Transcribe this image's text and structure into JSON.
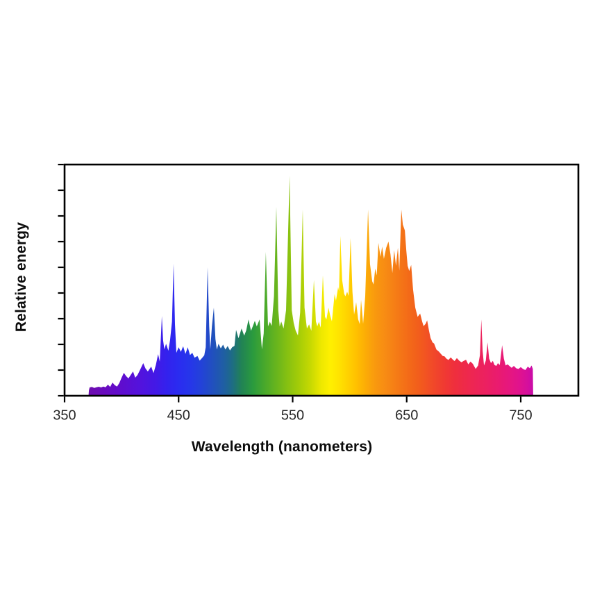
{
  "page": {
    "background_color": "#ffffff"
  },
  "chart_data": {
    "type": "area",
    "title": "",
    "xlabel": "Wavelength (nanometers)",
    "ylabel": "Relative energy",
    "grid": false,
    "legend_position": "none",
    "x_axis": {
      "min": 350,
      "max": 800,
      "ticks": [
        "350",
        "450",
        "550",
        "650",
        "750"
      ],
      "tick_values": [
        350,
        450,
        550,
        650,
        750
      ],
      "unit": "nm"
    },
    "y_axis": {
      "min": 0,
      "max": 1,
      "ticks_count": 10,
      "tick_labels_shown": false
    },
    "axis_color": "#000000",
    "tick_label_color": "#262626",
    "series_description": "Lamp spectral power distribution (many sharp emission spikes over a continuum), filled with a visible-spectrum color gradient from violet (~371 nm) to magenta (~761 nm). Energy values normalized 0-1 to plot height.",
    "points": [
      [
        371,
        0
      ],
      [
        371.4,
        0.024
      ],
      [
        372,
        0.036
      ],
      [
        374,
        0.038
      ],
      [
        376,
        0.034
      ],
      [
        378,
        0.037
      ],
      [
        380,
        0.039
      ],
      [
        382,
        0.036
      ],
      [
        384,
        0.04
      ],
      [
        386,
        0.037
      ],
      [
        388,
        0.048
      ],
      [
        390,
        0.038
      ],
      [
        392,
        0.057
      ],
      [
        394,
        0.046
      ],
      [
        396,
        0.04
      ],
      [
        398,
        0.055
      ],
      [
        400,
        0.078
      ],
      [
        402,
        0.099
      ],
      [
        404,
        0.085
      ],
      [
        406,
        0.075
      ],
      [
        408,
        0.09
      ],
      [
        410,
        0.105
      ],
      [
        412,
        0.078
      ],
      [
        414,
        0.09
      ],
      [
        416,
        0.11
      ],
      [
        419,
        0.141
      ],
      [
        421,
        0.118
      ],
      [
        423,
        0.105
      ],
      [
        426,
        0.126
      ],
      [
        428,
        0.098
      ],
      [
        430,
        0.132
      ],
      [
        432,
        0.18
      ],
      [
        433.5,
        0.148
      ],
      [
        435.3,
        0.345
      ],
      [
        436.4,
        0.24
      ],
      [
        437.5,
        0.201
      ],
      [
        439,
        0.225
      ],
      [
        441,
        0.195
      ],
      [
        442.5,
        0.24
      ],
      [
        444.2,
        0.32
      ],
      [
        445.6,
        0.571
      ],
      [
        446.8,
        0.31
      ],
      [
        448,
        0.186
      ],
      [
        450,
        0.21
      ],
      [
        452,
        0.19
      ],
      [
        454,
        0.214
      ],
      [
        456,
        0.181
      ],
      [
        458,
        0.21
      ],
      [
        460,
        0.176
      ],
      [
        462,
        0.186
      ],
      [
        464,
        0.165
      ],
      [
        466.5,
        0.172
      ],
      [
        468.5,
        0.152
      ],
      [
        470.5,
        0.163
      ],
      [
        472.5,
        0.175
      ],
      [
        473.8,
        0.21
      ],
      [
        475.4,
        0.556
      ],
      [
        476.8,
        0.3
      ],
      [
        477.8,
        0.201
      ],
      [
        479.2,
        0.3
      ],
      [
        480.9,
        0.381
      ],
      [
        482.3,
        0.245
      ],
      [
        483.5,
        0.2
      ],
      [
        485,
        0.225
      ],
      [
        487,
        0.205
      ],
      [
        489,
        0.221
      ],
      [
        491,
        0.2
      ],
      [
        493,
        0.215
      ],
      [
        495,
        0.196
      ],
      [
        497,
        0.21
      ],
      [
        499,
        0.216
      ],
      [
        500.4,
        0.285
      ],
      [
        502.5,
        0.249
      ],
      [
        505.2,
        0.291
      ],
      [
        507.5,
        0.26
      ],
      [
        509.2,
        0.281
      ],
      [
        511.3,
        0.33
      ],
      [
        513.5,
        0.281
      ],
      [
        515,
        0.3
      ],
      [
        516.8,
        0.324
      ],
      [
        518.5,
        0.3
      ],
      [
        521,
        0.33
      ],
      [
        523,
        0.201
      ],
      [
        524.6,
        0.27
      ],
      [
        526.5,
        0.622
      ],
      [
        528.4,
        0.3
      ],
      [
        530,
        0.32
      ],
      [
        531.6,
        0.302
      ],
      [
        533.6,
        0.43
      ],
      [
        535.7,
        0.817
      ],
      [
        537.4,
        0.37
      ],
      [
        538.6,
        0.3
      ],
      [
        540,
        0.321
      ],
      [
        542,
        0.291
      ],
      [
        544.2,
        0.37
      ],
      [
        547.3,
        0.952
      ],
      [
        549.2,
        0.37
      ],
      [
        550.9,
        0.315
      ],
      [
        552.6,
        0.282
      ],
      [
        554.6,
        0.261
      ],
      [
        556.6,
        0.36
      ],
      [
        558.8,
        0.805
      ],
      [
        560.4,
        0.381
      ],
      [
        562.5,
        0.291
      ],
      [
        564.4,
        0.309
      ],
      [
        566.4,
        0.281
      ],
      [
        568.6,
        0.501
      ],
      [
        570.4,
        0.321
      ],
      [
        571.6,
        0.3
      ],
      [
        573,
        0.32
      ],
      [
        574.6,
        0.295
      ],
      [
        576.5,
        0.52
      ],
      [
        578.4,
        0.341
      ],
      [
        579.6,
        0.33
      ],
      [
        581.4,
        0.381
      ],
      [
        583,
        0.345
      ],
      [
        584.4,
        0.322
      ],
      [
        586.8,
        0.44
      ],
      [
        588,
        0.411
      ],
      [
        589.9,
        0.47
      ],
      [
        590.7,
        0.452
      ],
      [
        591.8,
        0.691
      ],
      [
        593.4,
        0.5
      ],
      [
        595.2,
        0.441
      ],
      [
        596.2,
        0.43
      ],
      [
        597.8,
        0.45
      ],
      [
        599,
        0.432
      ],
      [
        600.8,
        0.682
      ],
      [
        602.4,
        0.45
      ],
      [
        603.9,
        0.351
      ],
      [
        605.7,
        0.405
      ],
      [
        607.4,
        0.331
      ],
      [
        608.8,
        0.31
      ],
      [
        610,
        0.415
      ],
      [
        611.8,
        0.311
      ],
      [
        613.6,
        0.43
      ],
      [
        616.1,
        0.805
      ],
      [
        617.8,
        0.57
      ],
      [
        619.8,
        0.495
      ],
      [
        620.9,
        0.481
      ],
      [
        622.4,
        0.55
      ],
      [
        623.7,
        0.52
      ],
      [
        625.2,
        0.661
      ],
      [
        627,
        0.601
      ],
      [
        628.5,
        0.645
      ],
      [
        630,
        0.592
      ],
      [
        632,
        0.64
      ],
      [
        634,
        0.667
      ],
      [
        635.8,
        0.611
      ],
      [
        637.4,
        0.531
      ],
      [
        639,
        0.63
      ],
      [
        640.6,
        0.562
      ],
      [
        642.3,
        0.64
      ],
      [
        643.5,
        0.541
      ],
      [
        645.3,
        0.805
      ],
      [
        646.6,
        0.74
      ],
      [
        648.4,
        0.715
      ],
      [
        649.6,
        0.631
      ],
      [
        650.8,
        0.562
      ],
      [
        652.2,
        0.54
      ],
      [
        653.9,
        0.566
      ],
      [
        655.6,
        0.46
      ],
      [
        657.5,
        0.381
      ],
      [
        659.6,
        0.341
      ],
      [
        661.8,
        0.356
      ],
      [
        663.6,
        0.32
      ],
      [
        664.8,
        0.301
      ],
      [
        666.6,
        0.311
      ],
      [
        667.9,
        0.326
      ],
      [
        669.6,
        0.281
      ],
      [
        670.9,
        0.25
      ],
      [
        672.6,
        0.231
      ],
      [
        674,
        0.226
      ],
      [
        676,
        0.2
      ],
      [
        678.2,
        0.191
      ],
      [
        680,
        0.181
      ],
      [
        681.6,
        0.172
      ],
      [
        683.1,
        0.171
      ],
      [
        685,
        0.16
      ],
      [
        686.6,
        0.155
      ],
      [
        688.6,
        0.166
      ],
      [
        690.6,
        0.156
      ],
      [
        692,
        0.15
      ],
      [
        694,
        0.163
      ],
      [
        696,
        0.152
      ],
      [
        698,
        0.145
      ],
      [
        700,
        0.151
      ],
      [
        702,
        0.156
      ],
      [
        704,
        0.136
      ],
      [
        706,
        0.148
      ],
      [
        708,
        0.138
      ],
      [
        710.5,
        0.116
      ],
      [
        712.6,
        0.131
      ],
      [
        714.2,
        0.175
      ],
      [
        715.4,
        0.33
      ],
      [
        716.6,
        0.195
      ],
      [
        717.8,
        0.131
      ],
      [
        719.4,
        0.152
      ],
      [
        720.9,
        0.231
      ],
      [
        722.3,
        0.161
      ],
      [
        723.9,
        0.141
      ],
      [
        725.5,
        0.151
      ],
      [
        727,
        0.133
      ],
      [
        728.6,
        0.129
      ],
      [
        730,
        0.141
      ],
      [
        731.6,
        0.133
      ],
      [
        733.7,
        0.219
      ],
      [
        735.2,
        0.161
      ],
      [
        736.7,
        0.131
      ],
      [
        738.5,
        0.136
      ],
      [
        740,
        0.129
      ],
      [
        742,
        0.121
      ],
      [
        744,
        0.129
      ],
      [
        746,
        0.119
      ],
      [
        748,
        0.116
      ],
      [
        750,
        0.124
      ],
      [
        752,
        0.116
      ],
      [
        754,
        0.111
      ],
      [
        756.2,
        0.126
      ],
      [
        758,
        0.119
      ],
      [
        759.5,
        0.131
      ],
      [
        760.6,
        0.116
      ],
      [
        760.9,
        0
      ]
    ],
    "spectrum_gradient": [
      {
        "nm": 371,
        "color": "#6E0DAE"
      },
      {
        "nm": 385,
        "color": "#690BBE"
      },
      {
        "nm": 400,
        "color": "#5F0DCE"
      },
      {
        "nm": 415,
        "color": "#5412DC"
      },
      {
        "nm": 430,
        "color": "#4319E6"
      },
      {
        "nm": 440,
        "color": "#3322EE"
      },
      {
        "nm": 450,
        "color": "#2A2CF0"
      },
      {
        "nm": 460,
        "color": "#2636EA"
      },
      {
        "nm": 470,
        "color": "#2342D8"
      },
      {
        "nm": 480,
        "color": "#2150BE"
      },
      {
        "nm": 490,
        "color": "#1F5FA2"
      },
      {
        "nm": 497,
        "color": "#1E6C84"
      },
      {
        "nm": 505,
        "color": "#218255"
      },
      {
        "nm": 515,
        "color": "#2A9A3E"
      },
      {
        "nm": 525,
        "color": "#47A82C"
      },
      {
        "nm": 535,
        "color": "#66B41E"
      },
      {
        "nm": 545,
        "color": "#85C012"
      },
      {
        "nm": 555,
        "color": "#A3CC08"
      },
      {
        "nm": 565,
        "color": "#C4D802"
      },
      {
        "nm": 575,
        "color": "#EDE800"
      },
      {
        "nm": 583,
        "color": "#FFF000"
      },
      {
        "nm": 590,
        "color": "#FFE400"
      },
      {
        "nm": 598,
        "color": "#FFD200"
      },
      {
        "nm": 606,
        "color": "#FFC000"
      },
      {
        "nm": 614,
        "color": "#FCAC06"
      },
      {
        "nm": 622,
        "color": "#F99A0E"
      },
      {
        "nm": 632,
        "color": "#F78A14"
      },
      {
        "nm": 642,
        "color": "#F57A16"
      },
      {
        "nm": 652,
        "color": "#F36A18"
      },
      {
        "nm": 662,
        "color": "#F25B1D"
      },
      {
        "nm": 672,
        "color": "#F14B28"
      },
      {
        "nm": 682,
        "color": "#F03B31"
      },
      {
        "nm": 692,
        "color": "#EF2F3D"
      },
      {
        "nm": 702,
        "color": "#EE294B"
      },
      {
        "nm": 712,
        "color": "#ED2458"
      },
      {
        "nm": 722,
        "color": "#EB1F64"
      },
      {
        "nm": 732,
        "color": "#E91A72"
      },
      {
        "nm": 742,
        "color": "#E51682"
      },
      {
        "nm": 750,
        "color": "#DF1290"
      },
      {
        "nm": 756,
        "color": "#D50F9D"
      },
      {
        "nm": 761,
        "color": "#C70CA9"
      }
    ]
  }
}
